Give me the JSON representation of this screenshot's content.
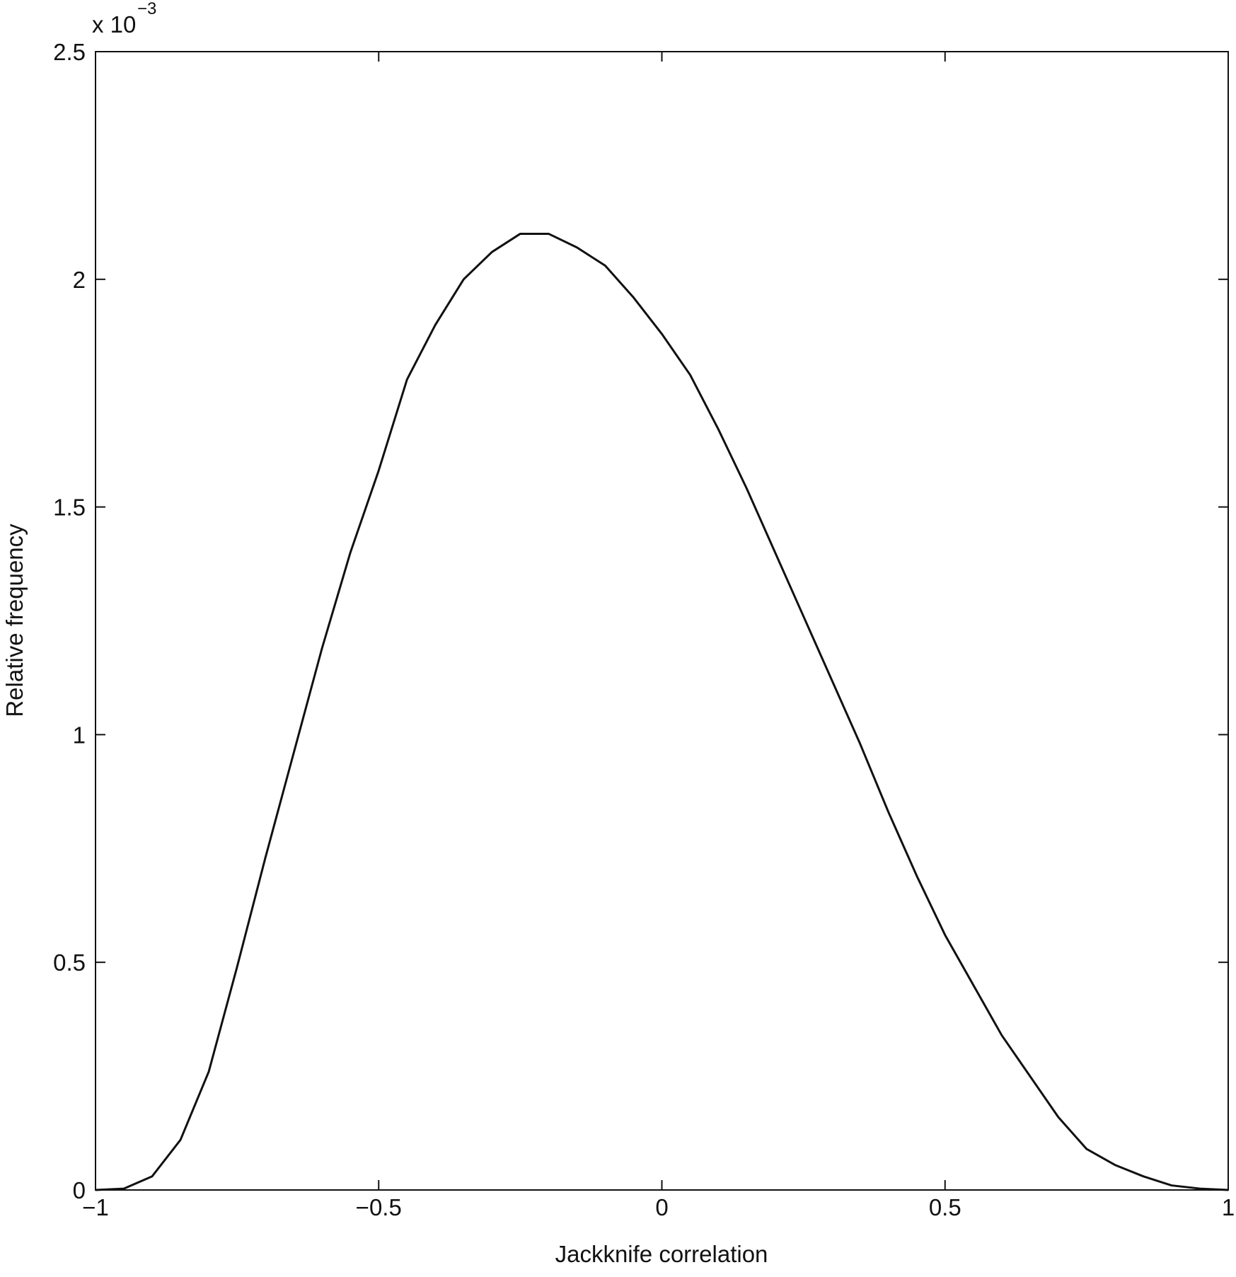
{
  "chart_data": {
    "type": "line",
    "xlabel": "Jackknife correlation",
    "ylabel": "Relative frequency",
    "y_scale": {
      "base": "x 10",
      "exponent": "−3"
    },
    "x": [
      -1,
      -0.95,
      -0.9,
      -0.85,
      -0.8,
      -0.75,
      -0.7,
      -0.65,
      -0.6,
      -0.55,
      -0.5,
      -0.45,
      -0.4,
      -0.35,
      -0.3,
      -0.25,
      -0.2,
      -0.15,
      -0.1,
      -0.05,
      0,
      0.05,
      0.1,
      0.15,
      0.2,
      0.25,
      0.3,
      0.35,
      0.4,
      0.45,
      0.5,
      0.55,
      0.6,
      0.65,
      0.7,
      0.75,
      0.8,
      0.85,
      0.9,
      0.95,
      1
    ],
    "series": [
      {
        "color": "#111111",
        "values": [
          0,
          0.003,
          0.03,
          0.11,
          0.26,
          0.49,
          0.73,
          0.96,
          1.19,
          1.4,
          1.58,
          1.78,
          1.9,
          2.0,
          2.06,
          2.1,
          2.1,
          2.07,
          2.03,
          1.96,
          1.88,
          1.79,
          1.67,
          1.54,
          1.4,
          1.26,
          1.12,
          0.98,
          0.83,
          0.69,
          0.56,
          0.45,
          0.34,
          0.25,
          0.16,
          0.09,
          0.055,
          0.03,
          0.01,
          0.003,
          0
        ]
      }
    ],
    "xlim": [
      -1,
      1
    ],
    "xticks": [
      {
        "value": -1,
        "label": "−1"
      },
      {
        "value": -0.5,
        "label": "−0.5"
      },
      0,
      0.5,
      1
    ],
    "ylim": [
      0,
      2.5
    ],
    "yticks": [
      0,
      0.5,
      1,
      1.5,
      2,
      2.5
    ],
    "grid": false
  }
}
